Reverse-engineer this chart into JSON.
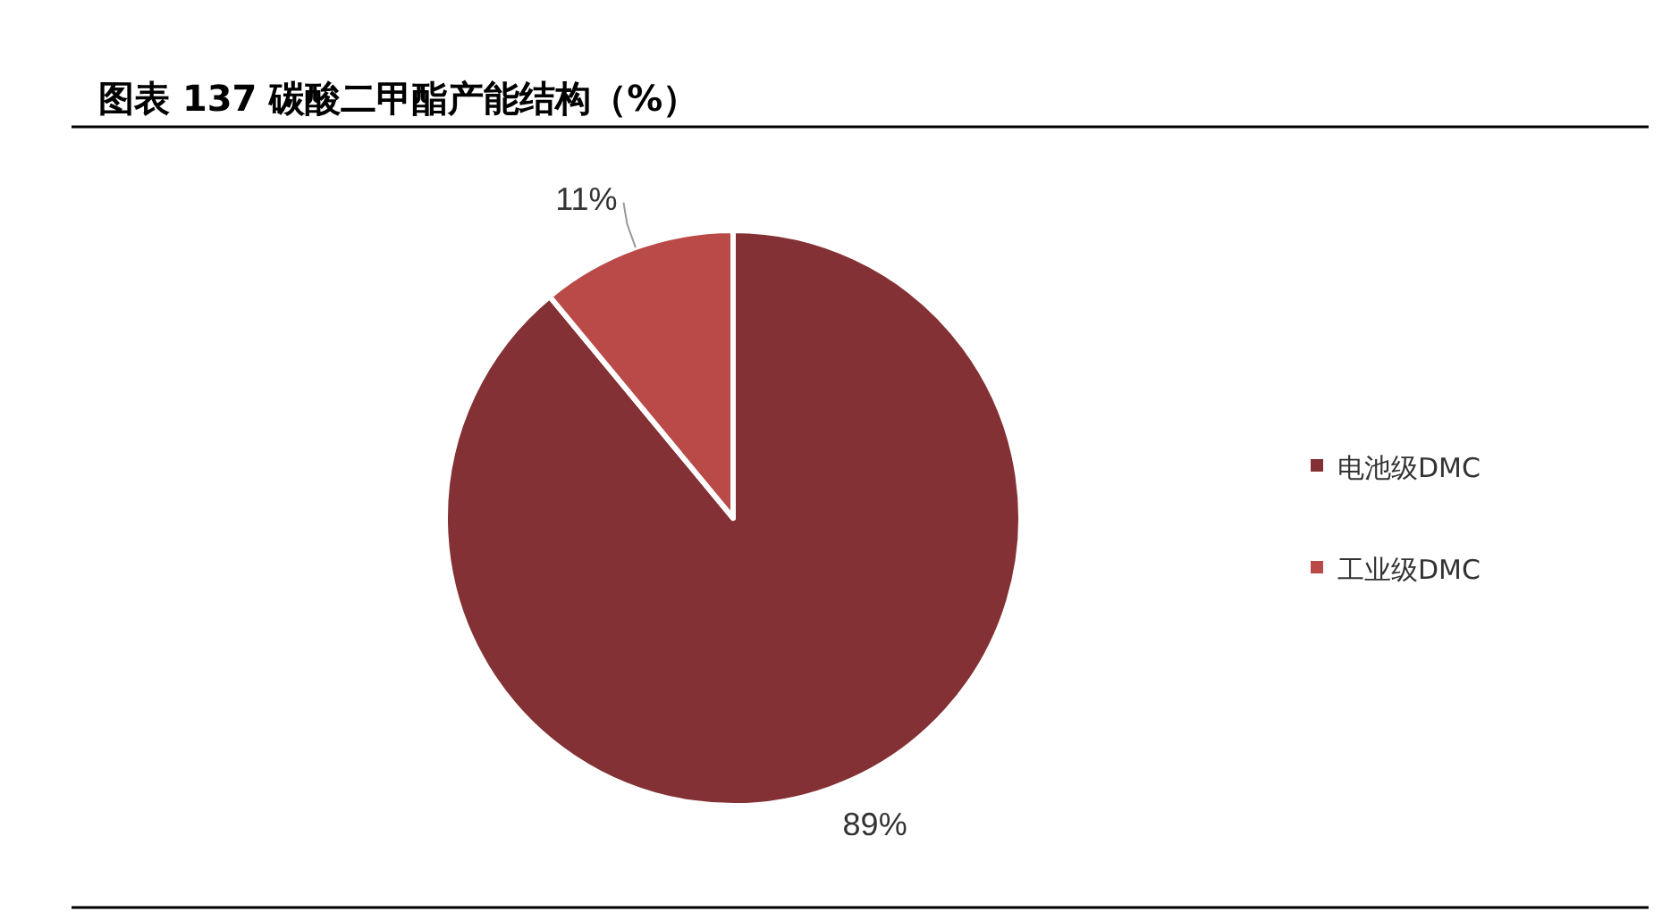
{
  "chart_data": {
    "type": "pie",
    "title": "图表 137 碳酸二甲酯产能结构（%）",
    "categories": [
      "电池级DMC",
      "工业级DMC"
    ],
    "values": [
      89,
      11
    ],
    "colors": [
      "#833134",
      "#b94a48"
    ],
    "value_labels": [
      "89%",
      "11%"
    ],
    "legend": "right"
  }
}
